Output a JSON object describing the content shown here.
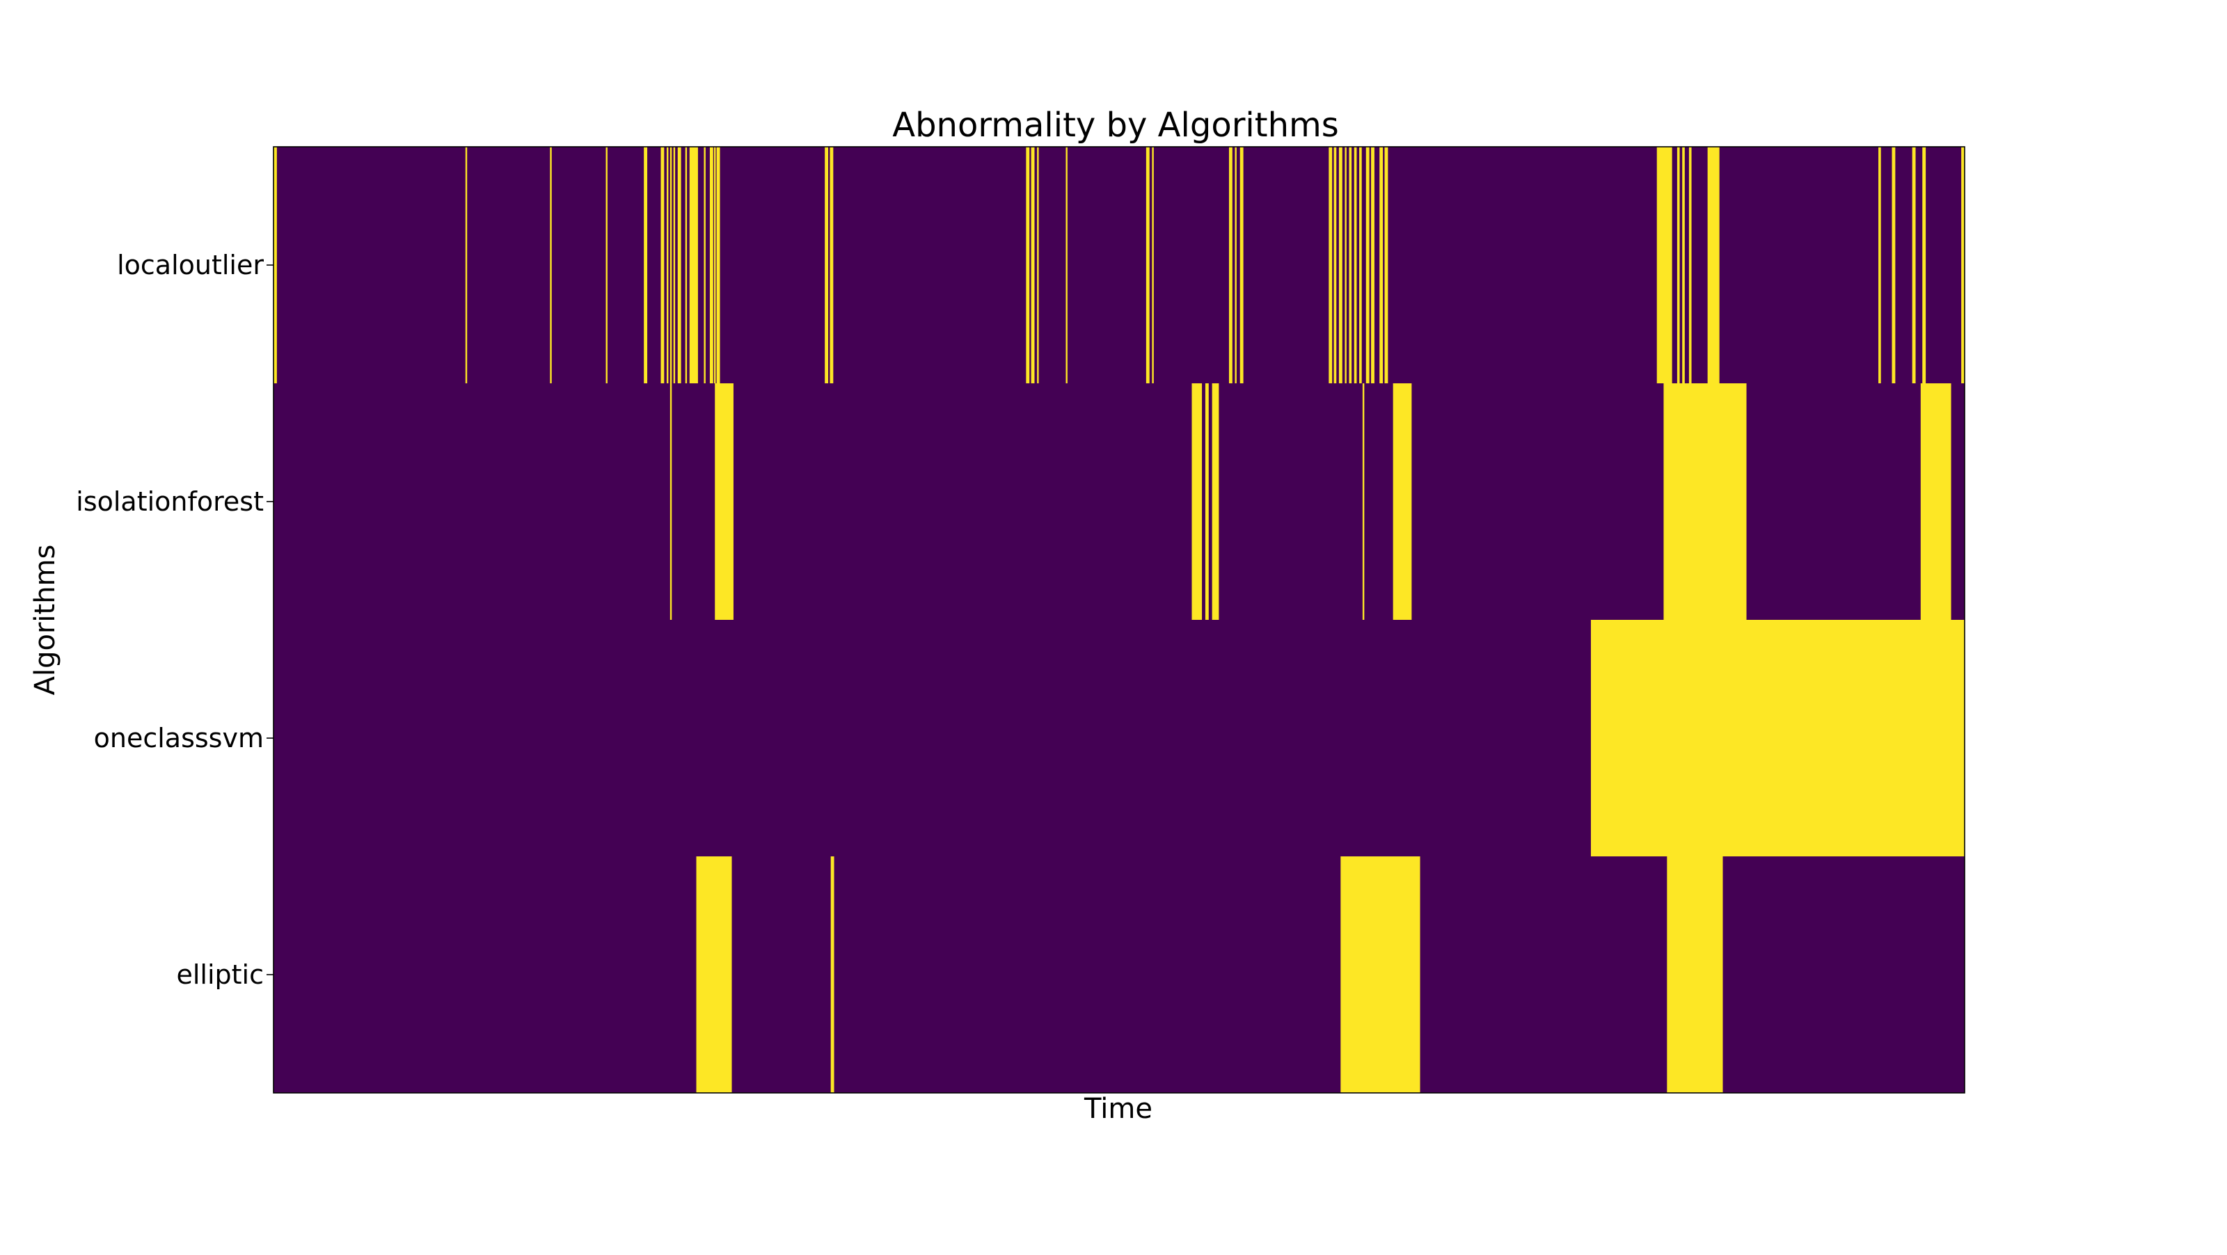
{
  "chart_data": {
    "type": "heatmap",
    "title": "Abnormality by Algorithms",
    "xlabel": "Time",
    "ylabel": "Algorithms",
    "x_range": [
      0,
      1000
    ],
    "x_ticks_shown": false,
    "grid": false,
    "legend": "none",
    "colors": {
      "normal": "#440154",
      "abnormal": "#fde725"
    },
    "rows": [
      {
        "name": "localoutlier",
        "abnormal_intervals": [
          [
            0,
            2
          ],
          [
            113.5,
            114.5
          ],
          [
            163.5,
            164.5
          ],
          [
            196.5,
            197.5
          ],
          [
            219,
            221
          ],
          [
            229,
            231
          ],
          [
            232.5,
            233.5
          ],
          [
            234.5,
            235.5
          ],
          [
            236.5,
            237.5
          ],
          [
            239,
            241
          ],
          [
            243.5,
            244.5
          ],
          [
            246,
            251
          ],
          [
            254.5,
            255.5
          ],
          [
            258,
            260
          ],
          [
            260.5,
            261.5
          ],
          [
            262,
            264
          ],
          [
            326,
            328
          ],
          [
            329,
            331
          ],
          [
            445,
            447
          ],
          [
            448,
            450
          ],
          [
            451.5,
            452.5
          ],
          [
            468.5,
            469.5
          ],
          [
            516,
            518
          ],
          [
            519.5,
            520.5
          ],
          [
            565,
            567
          ],
          [
            568.5,
            569.5
          ],
          [
            571.5,
            573.5
          ],
          [
            624,
            626
          ],
          [
            627,
            628.5
          ],
          [
            630,
            632
          ],
          [
            633.5,
            634.5
          ],
          [
            636,
            637.5
          ],
          [
            639,
            640.5
          ],
          [
            642,
            643.5
          ],
          [
            646,
            648
          ],
          [
            649,
            651
          ],
          [
            654,
            656
          ],
          [
            657,
            659
          ],
          [
            818,
            827
          ],
          [
            830,
            831.5
          ],
          [
            833,
            834.5
          ],
          [
            837,
            838.5
          ],
          [
            848,
            855
          ],
          [
            949,
            950.5
          ],
          [
            957,
            959
          ],
          [
            969,
            971
          ],
          [
            975,
            977
          ],
          [
            998,
            1000
          ]
        ]
      },
      {
        "name": "isolationforest",
        "abnormal_intervals": [
          [
            234.5,
            235.5
          ],
          [
            261,
            272
          ],
          [
            543,
            549
          ],
          [
            551,
            553
          ],
          [
            555,
            559
          ],
          [
            644,
            645
          ],
          [
            662,
            673
          ],
          [
            822,
            871
          ],
          [
            974,
            992
          ]
        ]
      },
      {
        "name": "oneclasssvm",
        "abnormal_intervals": [
          [
            779,
            1000
          ]
        ]
      },
      {
        "name": "elliptic",
        "abnormal_intervals": [
          [
            250,
            271
          ],
          [
            329.5,
            331.5
          ],
          [
            631,
            678
          ],
          [
            824,
            857
          ]
        ]
      }
    ]
  }
}
